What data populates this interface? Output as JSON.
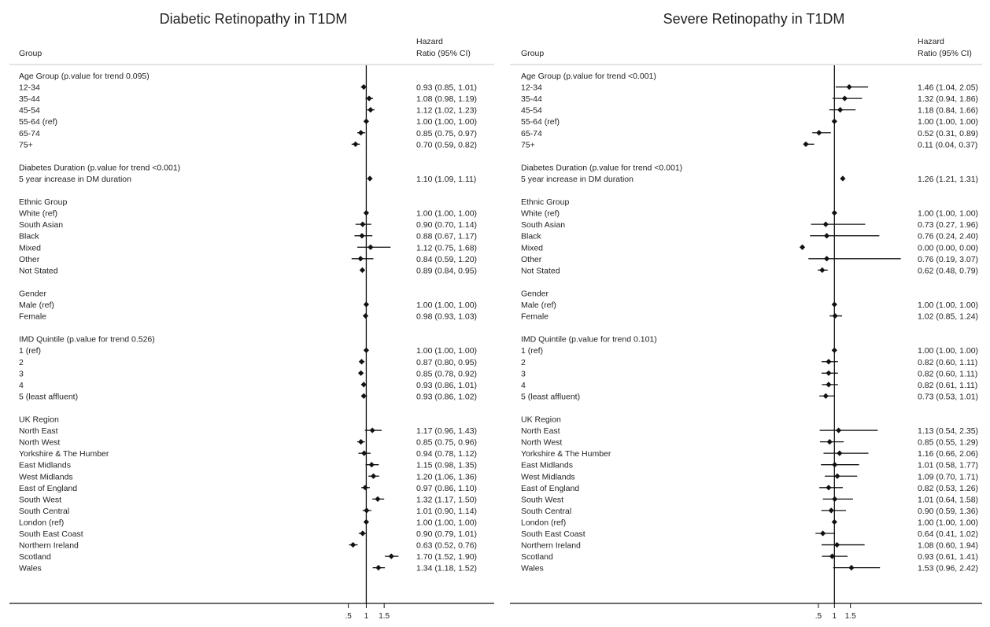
{
  "chart_data": [
    {
      "type": "forest",
      "title": "Diabetic Retinopathy in T1DM",
      "header_group": "Group",
      "header_hr_line1": "Hazard",
      "header_hr_line2": "Ratio (95% CI)",
      "x_ticks": [
        ".5",
        "1",
        "1.5"
      ],
      "x_tick_values": [
        0.5,
        1,
        1.5
      ],
      "xlim": [
        -4,
        2.2
      ],
      "reference_line": 1,
      "groups": [
        {
          "name": "Age Group (p.value for trend 0.095)",
          "rows": [
            {
              "label": "12-34",
              "hr": 0.93,
              "lo": 0.85,
              "hi": 1.01,
              "text": "0.93 (0.85, 1.01)"
            },
            {
              "label": "35-44",
              "hr": 1.08,
              "lo": 0.98,
              "hi": 1.19,
              "text": "1.08 (0.98, 1.19)"
            },
            {
              "label": "45-54",
              "hr": 1.12,
              "lo": 1.02,
              "hi": 1.23,
              "text": "1.12 (1.02, 1.23)"
            },
            {
              "label": "55-64 (ref)",
              "hr": 1.0,
              "lo": 1.0,
              "hi": 1.0,
              "text": "1.00 (1.00, 1.00)"
            },
            {
              "label": "65-74",
              "hr": 0.85,
              "lo": 0.75,
              "hi": 0.97,
              "text": "0.85 (0.75, 0.97)"
            },
            {
              "label": "75+",
              "hr": 0.7,
              "lo": 0.59,
              "hi": 0.82,
              "text": "0.70 (0.59, 0.82)"
            }
          ]
        },
        {
          "name": "Diabetes Duration (p.value for trend <0.001)",
          "rows": [
            {
              "label": "5 year increase in DM duration",
              "hr": 1.1,
              "lo": 1.09,
              "hi": 1.11,
              "text": "1.10 (1.09, 1.11)"
            }
          ]
        },
        {
          "name": "Ethnic Group",
          "rows": [
            {
              "label": "White (ref)",
              "hr": 1.0,
              "lo": 1.0,
              "hi": 1.0,
              "text": "1.00 (1.00, 1.00)"
            },
            {
              "label": "South Asian",
              "hr": 0.9,
              "lo": 0.7,
              "hi": 1.14,
              "text": "0.90 (0.70, 1.14)"
            },
            {
              "label": "Black",
              "hr": 0.88,
              "lo": 0.67,
              "hi": 1.17,
              "text": "0.88 (0.67, 1.17)"
            },
            {
              "label": "Mixed",
              "hr": 1.12,
              "lo": 0.75,
              "hi": 1.68,
              "text": "1.12 (0.75, 1.68)"
            },
            {
              "label": "Other",
              "hr": 0.84,
              "lo": 0.59,
              "hi": 1.2,
              "text": "0.84 (0.59, 1.20)"
            },
            {
              "label": "Not Stated",
              "hr": 0.89,
              "lo": 0.84,
              "hi": 0.95,
              "text": "0.89 (0.84, 0.95)"
            }
          ]
        },
        {
          "name": "Gender",
          "rows": [
            {
              "label": "Male (ref)",
              "hr": 1.0,
              "lo": 1.0,
              "hi": 1.0,
              "text": "1.00 (1.00, 1.00)"
            },
            {
              "label": "Female",
              "hr": 0.98,
              "lo": 0.93,
              "hi": 1.03,
              "text": "0.98 (0.93, 1.03)"
            }
          ]
        },
        {
          "name": "IMD Quintile (p.value for trend 0.526)",
          "rows": [
            {
              "label": "1  (ref)",
              "hr": 1.0,
              "lo": 1.0,
              "hi": 1.0,
              "text": "1.00 (1.00, 1.00)"
            },
            {
              "label": "2",
              "hr": 0.87,
              "lo": 0.8,
              "hi": 0.95,
              "text": "0.87 (0.80, 0.95)"
            },
            {
              "label": "3",
              "hr": 0.85,
              "lo": 0.78,
              "hi": 0.92,
              "text": "0.85 (0.78, 0.92)"
            },
            {
              "label": "4",
              "hr": 0.93,
              "lo": 0.86,
              "hi": 1.01,
              "text": "0.93 (0.86, 1.01)"
            },
            {
              "label": "5 (least affluent)",
              "hr": 0.93,
              "lo": 0.86,
              "hi": 1.02,
              "text": "0.93 (0.86, 1.02)"
            }
          ]
        },
        {
          "name": "UK Region",
          "rows": [
            {
              "label": "North East",
              "hr": 1.17,
              "lo": 0.96,
              "hi": 1.43,
              "text": "1.17 (0.96, 1.43)"
            },
            {
              "label": "North West",
              "hr": 0.85,
              "lo": 0.75,
              "hi": 0.96,
              "text": "0.85 (0.75, 0.96)"
            },
            {
              "label": "Yorkshire & The Humber",
              "hr": 0.94,
              "lo": 0.78,
              "hi": 1.12,
              "text": "0.94 (0.78, 1.12)"
            },
            {
              "label": "East Midlands",
              "hr": 1.15,
              "lo": 0.98,
              "hi": 1.35,
              "text": "1.15 (0.98, 1.35)"
            },
            {
              "label": "West Midlands",
              "hr": 1.2,
              "lo": 1.06,
              "hi": 1.36,
              "text": "1.20 (1.06, 1.36)"
            },
            {
              "label": "East of England",
              "hr": 0.97,
              "lo": 0.86,
              "hi": 1.1,
              "text": "0.97 (0.86, 1.10)"
            },
            {
              "label": "South West",
              "hr": 1.32,
              "lo": 1.17,
              "hi": 1.5,
              "text": "1.32 (1.17, 1.50)"
            },
            {
              "label": "South Central",
              "hr": 1.01,
              "lo": 0.9,
              "hi": 1.14,
              "text": "1.01 (0.90, 1.14)"
            },
            {
              "label": "London (ref)",
              "hr": 1.0,
              "lo": 1.0,
              "hi": 1.0,
              "text": "1.00 (1.00, 1.00)"
            },
            {
              "label": "South East Coast",
              "hr": 0.9,
              "lo": 0.79,
              "hi": 1.01,
              "text": "0.90 (0.79, 1.01)"
            },
            {
              "label": "Northern Ireland",
              "hr": 0.63,
              "lo": 0.52,
              "hi": 0.76,
              "text": "0.63 (0.52, 0.76)"
            },
            {
              "label": "Scotland",
              "hr": 1.7,
              "lo": 1.52,
              "hi": 1.9,
              "text": "1.70 (1.52, 1.90)"
            },
            {
              "label": "Wales",
              "hr": 1.34,
              "lo": 1.18,
              "hi": 1.52,
              "text": "1.34 (1.18, 1.52)"
            }
          ]
        }
      ]
    },
    {
      "type": "forest",
      "title": "Severe Retinopathy in T1DM",
      "header_group": "Group",
      "header_hr_line1": "Hazard",
      "header_hr_line2": "Ratio (95% CI)",
      "x_ticks": [
        ".5",
        "1",
        "1.5"
      ],
      "x_tick_values": [
        0.5,
        1,
        1.5
      ],
      "xlim": [
        -2,
        3.2
      ],
      "reference_line": 1,
      "groups": [
        {
          "name": "Age Group (p.value for trend <0.001)",
          "rows": [
            {
              "label": "12-34",
              "hr": 1.46,
              "lo": 1.04,
              "hi": 2.05,
              "text": "1.46 (1.04, 2.05)"
            },
            {
              "label": "35-44",
              "hr": 1.32,
              "lo": 0.94,
              "hi": 1.86,
              "text": "1.32 (0.94, 1.86)"
            },
            {
              "label": "45-54",
              "hr": 1.18,
              "lo": 0.84,
              "hi": 1.66,
              "text": "1.18 (0.84, 1.66)"
            },
            {
              "label": "55-64 (ref)",
              "hr": 1.0,
              "lo": 1.0,
              "hi": 1.0,
              "text": "1.00 (1.00, 1.00)"
            },
            {
              "label": "65-74",
              "hr": 0.52,
              "lo": 0.31,
              "hi": 0.89,
              "text": "0.52 (0.31, 0.89)"
            },
            {
              "label": "75+",
              "hr": 0.11,
              "lo": 0.04,
              "hi": 0.37,
              "text": "0.11 (0.04, 0.37)"
            }
          ]
        },
        {
          "name": "Diabetes Duration (p.value for trend <0.001)",
          "rows": [
            {
              "label": "5 year increase in DM duration",
              "hr": 1.26,
              "lo": 1.21,
              "hi": 1.31,
              "text": "1.26 (1.21, 1.31)"
            }
          ]
        },
        {
          "name": "Ethnic Group",
          "rows": [
            {
              "label": "White (ref)",
              "hr": 1.0,
              "lo": 1.0,
              "hi": 1.0,
              "text": "1.00 (1.00, 1.00)"
            },
            {
              "label": "South Asian",
              "hr": 0.73,
              "lo": 0.27,
              "hi": 1.96,
              "text": "0.73 (0.27, 1.96)"
            },
            {
              "label": "Black",
              "hr": 0.76,
              "lo": 0.24,
              "hi": 2.4,
              "text": "0.76 (0.24, 2.40)"
            },
            {
              "label": "Mixed",
              "hr": 0.0,
              "lo": 0.0,
              "hi": 0.0,
              "text": "0.00 (0.00, 0.00)"
            },
            {
              "label": "Other",
              "hr": 0.76,
              "lo": 0.19,
              "hi": 3.07,
              "text": "0.76 (0.19, 3.07)"
            },
            {
              "label": "Not Stated",
              "hr": 0.62,
              "lo": 0.48,
              "hi": 0.79,
              "text": "0.62 (0.48, 0.79)"
            }
          ]
        },
        {
          "name": "Gender",
          "rows": [
            {
              "label": "Male (ref)",
              "hr": 1.0,
              "lo": 1.0,
              "hi": 1.0,
              "text": "1.00 (1.00, 1.00)"
            },
            {
              "label": "Female",
              "hr": 1.02,
              "lo": 0.85,
              "hi": 1.24,
              "text": "1.02 (0.85, 1.24)"
            }
          ]
        },
        {
          "name": "IMD Quintile (p.value for trend 0.101)",
          "rows": [
            {
              "label": "1  (ref)",
              "hr": 1.0,
              "lo": 1.0,
              "hi": 1.0,
              "text": "1.00 (1.00, 1.00)"
            },
            {
              "label": "2",
              "hr": 0.82,
              "lo": 0.6,
              "hi": 1.11,
              "text": "0.82 (0.60, 1.11)"
            },
            {
              "label": "3",
              "hr": 0.82,
              "lo": 0.6,
              "hi": 1.11,
              "text": "0.82 (0.60, 1.11)"
            },
            {
              "label": "4",
              "hr": 0.82,
              "lo": 0.61,
              "hi": 1.11,
              "text": "0.82 (0.61, 1.11)"
            },
            {
              "label": "5 (least affluent)",
              "hr": 0.73,
              "lo": 0.53,
              "hi": 1.01,
              "text": "0.73 (0.53, 1.01)"
            }
          ]
        },
        {
          "name": "UK Region",
          "rows": [
            {
              "label": "North East",
              "hr": 1.13,
              "lo": 0.54,
              "hi": 2.35,
              "text": "1.13 (0.54, 2.35)"
            },
            {
              "label": "North West",
              "hr": 0.85,
              "lo": 0.55,
              "hi": 1.29,
              "text": "0.85 (0.55, 1.29)"
            },
            {
              "label": "Yorkshire & The Humber",
              "hr": 1.16,
              "lo": 0.66,
              "hi": 2.06,
              "text": "1.16 (0.66, 2.06)"
            },
            {
              "label": "East Midlands",
              "hr": 1.01,
              "lo": 0.58,
              "hi": 1.77,
              "text": "1.01 (0.58, 1.77)"
            },
            {
              "label": "West Midlands",
              "hr": 1.09,
              "lo": 0.7,
              "hi": 1.71,
              "text": "1.09 (0.70, 1.71)"
            },
            {
              "label": "East of England",
              "hr": 0.82,
              "lo": 0.53,
              "hi": 1.26,
              "text": "0.82 (0.53, 1.26)"
            },
            {
              "label": "South West",
              "hr": 1.01,
              "lo": 0.64,
              "hi": 1.58,
              "text": "1.01 (0.64, 1.58)"
            },
            {
              "label": "South Central",
              "hr": 0.9,
              "lo": 0.59,
              "hi": 1.36,
              "text": "0.90 (0.59, 1.36)"
            },
            {
              "label": "London (ref)",
              "hr": 1.0,
              "lo": 1.0,
              "hi": 1.0,
              "text": "1.00 (1.00, 1.00)"
            },
            {
              "label": "South East Coast",
              "hr": 0.64,
              "lo": 0.41,
              "hi": 1.02,
              "text": "0.64 (0.41, 1.02)"
            },
            {
              "label": "Northern Ireland",
              "hr": 1.08,
              "lo": 0.6,
              "hi": 1.94,
              "text": "1.08 (0.60, 1.94)"
            },
            {
              "label": "Scotland",
              "hr": 0.93,
              "lo": 0.61,
              "hi": 1.41,
              "text": "0.93 (0.61, 1.41)"
            },
            {
              "label": "Wales",
              "hr": 1.53,
              "lo": 0.96,
              "hi": 2.42,
              "text": "1.53 (0.96, 2.42)"
            }
          ]
        }
      ]
    }
  ]
}
